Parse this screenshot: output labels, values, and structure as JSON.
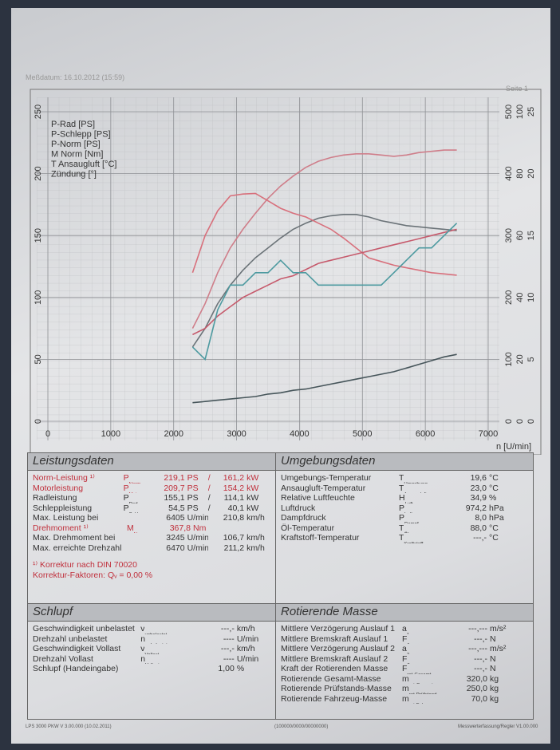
{
  "header": {
    "date": "Meßdatum: 16.10.2012 (15:59)",
    "page": "Seite 1"
  },
  "chart_data": {
    "type": "line",
    "x_label": "n [U/min]",
    "x": [
      2300,
      2500,
      2700,
      2900,
      3100,
      3300,
      3500,
      3700,
      3900,
      4100,
      4300,
      4500,
      4700,
      4900,
      5100,
      5300,
      5500,
      5700,
      5900,
      6100,
      6300,
      6500
    ],
    "xlim": [
      0,
      7000
    ],
    "xticks": [
      0,
      1000,
      2000,
      3000,
      4000,
      5000,
      6000,
      7000
    ],
    "ylim": [
      0,
      250
    ],
    "yticks": [
      0,
      50,
      100,
      150,
      200,
      250
    ],
    "y2lim": [
      0,
      500
    ],
    "y2ticks": [
      0,
      100,
      200,
      300,
      400,
      500
    ],
    "y3lim": [
      0,
      100
    ],
    "y3ticks": [
      0,
      20,
      40,
      60,
      80,
      100
    ],
    "y4lim": [
      0,
      25
    ],
    "y4ticks": [
      0,
      5,
      10,
      15,
      20,
      25
    ],
    "grid": true,
    "legend": "top-left",
    "series": [
      {
        "name": "P-Rad [PS]",
        "color": "#6b7378",
        "values": [
          60,
          75,
          95,
          110,
          122,
          132,
          140,
          148,
          155,
          160,
          164,
          166,
          167,
          167,
          165,
          162,
          160,
          158,
          157,
          156,
          155,
          154
        ]
      },
      {
        "name": "P-Schlepp [PS]",
        "color": "#46555a",
        "values": [
          15,
          16,
          17,
          18,
          19,
          20,
          22,
          23,
          25,
          26,
          28,
          30,
          32,
          34,
          36,
          38,
          40,
          43,
          46,
          49,
          52,
          54
        ]
      },
      {
        "name": "P-Norm [PS]",
        "color": "#cf7e8a",
        "values": [
          75,
          95,
          120,
          140,
          155,
          168,
          180,
          190,
          198,
          205,
          210,
          213,
          215,
          216,
          216,
          215,
          214,
          215,
          217,
          218,
          219,
          219
        ]
      },
      {
        "name": "M Norm [Nm]",
        "color": "#d8707c",
        "axis": "y2",
        "values": [
          240,
          300,
          340,
          364,
          367,
          368,
          356,
          344,
          336,
          330,
          320,
          310,
          296,
          280,
          264,
          258,
          252,
          248,
          244,
          240,
          238,
          236
        ]
      },
      {
        "name": "T Ansaugluft [°C]",
        "color": "#c65a6c",
        "axis": "y3",
        "values": [
          28,
          30,
          34,
          37,
          40,
          42,
          44,
          46,
          47,
          49,
          51,
          52,
          53,
          54,
          55,
          56,
          57,
          58,
          59,
          60,
          61,
          62
        ]
      },
      {
        "name": "Zündung [°]",
        "color": "#4d9aa0",
        "axis": "y4",
        "values": [
          6,
          5,
          9,
          11,
          11,
          12,
          12,
          13,
          12,
          12,
          11,
          11,
          11,
          11,
          11,
          11,
          12,
          13,
          14,
          14,
          15,
          16
        ]
      }
    ]
  },
  "leistungsdaten": {
    "title": "Leistungsdaten",
    "rows": [
      {
        "label": "Norm-Leistung ¹⁾",
        "symbol": [
          "P",
          "Norm"
        ],
        "color": "#c0303c",
        "cells": [
          "219,1",
          "PS",
          "/",
          "161,2",
          "kW"
        ]
      },
      {
        "label": "Motorleistung",
        "symbol": [
          "P",
          "Mot"
        ],
        "color": "#c0303c",
        "cells": [
          "209,7",
          "PS",
          "/",
          "154,2",
          "kW"
        ]
      },
      {
        "label": "Radleistung",
        "symbol": [
          "P",
          "Rad"
        ],
        "cells": [
          "155,1",
          "PS",
          "/",
          "114,1",
          "kW"
        ]
      },
      {
        "label": "Schleppleistung",
        "symbol": [
          "P",
          "Schlepp"
        ],
        "cells": [
          "54,5",
          "PS",
          "/",
          "40,1",
          "kW"
        ]
      },
      {
        "label": "Max. Leistung bei",
        "cells": [
          "6405",
          "U/min/",
          null,
          "210,8",
          "km/h"
        ]
      },
      {
        "label": "Drehmoment ¹⁾",
        "symbol": [
          "M",
          "Norm"
        ],
        "color": "#c0303c",
        "cells": [
          "367,8",
          "Nm"
        ]
      },
      {
        "label": "Max. Drehmoment bei",
        "cells": [
          "3245",
          "U/min/",
          null,
          "106,7",
          "km/h"
        ]
      },
      {
        "label": "Max. erreichte Drehzahl",
        "cells": [
          "6470",
          "U/min/",
          null,
          "211,2",
          "km/h"
        ]
      }
    ],
    "notes": [
      "¹⁾ Korrektur nach DIN 70020",
      "Korrektur-Faktoren: Qᵥ = 0,00 %"
    ]
  },
  "umgebungsdaten": {
    "title": "Umgebungsdaten",
    "rows": [
      {
        "label": "Umgebungs-Temperatur",
        "symbol": [
          "T",
          "Umgebung"
        ],
        "value": "19,6",
        "unit": "°C"
      },
      {
        "label": "Ansaugluft-Temperatur",
        "symbol": [
          "T",
          "Ansaugluft"
        ],
        "value": "23,0",
        "unit": "°C"
      },
      {
        "label": "Relative Luftfeuchte",
        "symbol": [
          "H",
          "Luft"
        ],
        "value": "34,9",
        "unit": "%"
      },
      {
        "label": "Luftdruck",
        "symbol": [
          "P",
          "Luft"
        ],
        "value": "974,2",
        "unit": "hPa"
      },
      {
        "label": "Dampfdruck",
        "symbol": [
          "P",
          "Dampf"
        ],
        "value": "8,0",
        "unit": "hPa"
      },
      {
        "label": "Öl-Temperatur",
        "symbol": [
          "T",
          "Öl"
        ],
        "value": "88,0",
        "unit": "°C"
      },
      {
        "label": "Kraftstoff-Temperatur",
        "symbol": [
          "T",
          "Kraftstoff"
        ],
        "value": "---,-",
        "unit": "°C"
      }
    ]
  },
  "schlupf": {
    "title": "Schlupf",
    "rows": [
      {
        "label": "Geschwindigkeit unbelastet",
        "symbol": [
          "v",
          "unbelastet"
        ],
        "value": "---,-",
        "unit": "km/h"
      },
      {
        "label": "Drehzahl unbelastet",
        "symbol": [
          "n",
          "unbelastet"
        ],
        "value": "----",
        "unit": "U/min"
      },
      {
        "label": "Geschwindigkeit Vollast",
        "symbol": [
          "v",
          "Vollast"
        ],
        "value": "---,-",
        "unit": "km/h"
      },
      {
        "label": "Drehzahl Vollast",
        "symbol": [
          "n",
          "Vollast"
        ],
        "value": "----",
        "unit": "U/min"
      },
      {
        "label": "Schlupf (Handeingabe)",
        "value": "1,00",
        "unit": "%"
      }
    ]
  },
  "rotierende_masse": {
    "title": "Rotierende Masse",
    "rows": [
      {
        "label": "Mittlere Verzögerung Auslauf 1",
        "symbol": [
          "a",
          "1"
        ],
        "value": "---,---",
        "unit": "m/s²"
      },
      {
        "label": "Mittlere Bremskraft Auslauf 1",
        "symbol": [
          "F",
          "1"
        ],
        "value": "---,-",
        "unit": "N"
      },
      {
        "label": "Mittlere Verzögerung Auslauf 2",
        "symbol": [
          "a",
          "2"
        ],
        "value": "---,---",
        "unit": "m/s²"
      },
      {
        "label": "Mittlere Bremskraft Auslauf 2",
        "symbol": [
          "F",
          "2"
        ],
        "value": "---,-",
        "unit": "N"
      },
      {
        "label": "Kraft der Rotierenden Masse",
        "symbol": [
          "F",
          "rot-Gesamt"
        ],
        "value": "---,-",
        "unit": "N"
      },
      {
        "label": "Rotierende Gesamt-Masse",
        "symbol": [
          "m",
          "rot-Gesamt"
        ],
        "value": "320,0",
        "unit": "kg"
      },
      {
        "label": "Rotierende Prüfstands-Masse",
        "symbol": [
          "m",
          "rot-Prüfstand"
        ],
        "value": "250,0",
        "unit": "kg"
      },
      {
        "label": "Rotierende Fahrzeug-Masse",
        "symbol": [
          "m",
          "rot-Fahrzeug"
        ],
        "value": "70,0",
        "unit": "kg"
      }
    ]
  },
  "footer": [
    "LPS 3000 PKW V 3.00.000 (10.02.2011)",
    "(100000/0000/00000000)",
    "Messwerterfassung/Regler V1.00.000"
  ]
}
